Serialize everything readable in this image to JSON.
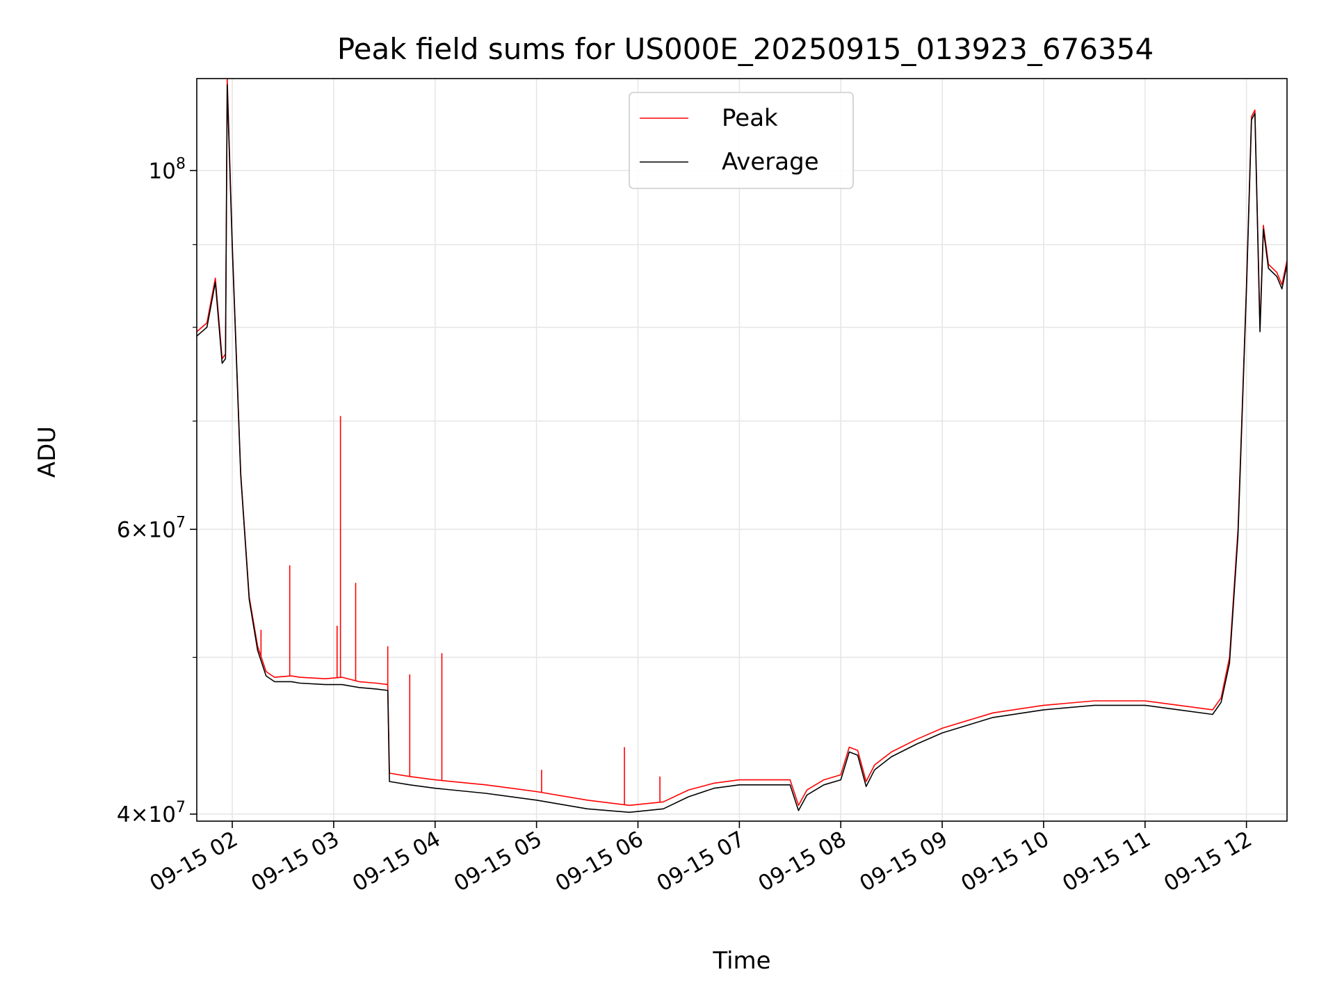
{
  "chart_data": {
    "type": "line",
    "title": "Peak field sums for US000E_20250915_013923_676354",
    "xlabel": "Time",
    "ylabel": "ADU",
    "xlim": [
      "2025-09-15 01:39",
      "2025-09-15 12:24"
    ],
    "ylim": [
      39600000,
      114000000
    ],
    "yscale": "log",
    "grid": true,
    "legend_position": "upper-center",
    "x_ticks": [
      "09-15 02",
      "09-15 03",
      "09-15 04",
      "09-15 05",
      "09-15 06",
      "09-15 07",
      "09-15 08",
      "09-15 09",
      "09-15 10",
      "09-15 11",
      "09-15 12"
    ],
    "y_ticks": [
      {
        "value": 40000000,
        "mantissa": "4",
        "exponent": "7"
      },
      {
        "value": 60000000,
        "mantissa": "6",
        "exponent": "7"
      },
      {
        "value": 100000000,
        "mantissa": "",
        "exponent": "8"
      }
    ],
    "y_minor_ticks": [
      50000000,
      70000000,
      80000000,
      90000000
    ],
    "series": [
      {
        "name": "Peak",
        "color": "#ff0000",
        "x": [
          "2025-09-15 01:39",
          "2025-09-15 01:45",
          "2025-09-15 01:50",
          "2025-09-15 01:54",
          "2025-09-15 01:56",
          "2025-09-15 01:57",
          "2025-09-15 02:00",
          "2025-09-15 02:05",
          "2025-09-15 02:10",
          "2025-09-15 02:15",
          "2025-09-15 02:20",
          "2025-09-15 02:25",
          "2025-09-15 02:35",
          "2025-09-15 02:40",
          "2025-09-15 02:55",
          "2025-09-15 03:05",
          "2025-09-15 03:15",
          "2025-09-15 03:25",
          "2025-09-15 03:32",
          "2025-09-15 03:33",
          "2025-09-15 03:45",
          "2025-09-15 04:00",
          "2025-09-15 04:30",
          "2025-09-15 05:00",
          "2025-09-15 05:30",
          "2025-09-15 05:55",
          "2025-09-15 06:15",
          "2025-09-15 06:30",
          "2025-09-15 06:45",
          "2025-09-15 07:00",
          "2025-09-15 07:30",
          "2025-09-15 07:35",
          "2025-09-15 07:40",
          "2025-09-15 07:50",
          "2025-09-15 08:00",
          "2025-09-15 08:05",
          "2025-09-15 08:10",
          "2025-09-15 08:15",
          "2025-09-15 08:20",
          "2025-09-15 08:30",
          "2025-09-15 08:45",
          "2025-09-15 09:00",
          "2025-09-15 09:30",
          "2025-09-15 10:00",
          "2025-09-15 10:30",
          "2025-09-15 11:00",
          "2025-09-15 11:20",
          "2025-09-15 11:40",
          "2025-09-15 11:45",
          "2025-09-15 11:50",
          "2025-09-15 11:55",
          "2025-09-15 12:00",
          "2025-09-15 12:03",
          "2025-09-15 12:05",
          "2025-09-15 12:08",
          "2025-09-15 12:10",
          "2025-09-15 12:13",
          "2025-09-15 12:18",
          "2025-09-15 12:21",
          "2025-09-15 12:24"
        ],
        "y": [
          79500000,
          80500000,
          85800000,
          76500000,
          77000000,
          114000000,
          90000000,
          65000000,
          54500000,
          50800000,
          49000000,
          48600000,
          48700000,
          48600000,
          48500000,
          48600000,
          48300000,
          48200000,
          48100000,
          42400000,
          42200000,
          42000000,
          41700000,
          41300000,
          40800000,
          40500000,
          40700000,
          41400000,
          41800000,
          42000000,
          42000000,
          40500000,
          41400000,
          42000000,
          42300000,
          44000000,
          43800000,
          41900000,
          42900000,
          43700000,
          44500000,
          45200000,
          46200000,
          46700000,
          47000000,
          47000000,
          46700000,
          46400000,
          47200000,
          50000000,
          60000000,
          85000000,
          108000000,
          109000000,
          80000000,
          92500000,
          87500000,
          86500000,
          85000000,
          88000000
        ]
      },
      {
        "name": "Average",
        "color": "#000000",
        "x": [
          "2025-09-15 01:39",
          "2025-09-15 01:45",
          "2025-09-15 01:50",
          "2025-09-15 01:54",
          "2025-09-15 01:56",
          "2025-09-15 01:57",
          "2025-09-15 02:00",
          "2025-09-15 02:05",
          "2025-09-15 02:10",
          "2025-09-15 02:15",
          "2025-09-15 02:20",
          "2025-09-15 02:25",
          "2025-09-15 02:35",
          "2025-09-15 02:40",
          "2025-09-15 02:55",
          "2025-09-15 03:05",
          "2025-09-15 03:15",
          "2025-09-15 03:25",
          "2025-09-15 03:32",
          "2025-09-15 03:33",
          "2025-09-15 03:45",
          "2025-09-15 04:00",
          "2025-09-15 04:30",
          "2025-09-15 05:00",
          "2025-09-15 05:30",
          "2025-09-15 05:55",
          "2025-09-15 06:15",
          "2025-09-15 06:30",
          "2025-09-15 06:45",
          "2025-09-15 07:00",
          "2025-09-15 07:30",
          "2025-09-15 07:35",
          "2025-09-15 07:40",
          "2025-09-15 07:50",
          "2025-09-15 08:00",
          "2025-09-15 08:05",
          "2025-09-15 08:10",
          "2025-09-15 08:15",
          "2025-09-15 08:20",
          "2025-09-15 08:30",
          "2025-09-15 08:45",
          "2025-09-15 09:00",
          "2025-09-15 09:30",
          "2025-09-15 10:00",
          "2025-09-15 10:30",
          "2025-09-15 11:00",
          "2025-09-15 11:20",
          "2025-09-15 11:40",
          "2025-09-15 11:45",
          "2025-09-15 11:50",
          "2025-09-15 11:55",
          "2025-09-15 12:00",
          "2025-09-15 12:03",
          "2025-09-15 12:05",
          "2025-09-15 12:08",
          "2025-09-15 12:10",
          "2025-09-15 12:13",
          "2025-09-15 12:18",
          "2025-09-15 12:21",
          "2025-09-15 12:24"
        ],
        "y": [
          79000000,
          80000000,
          85300000,
          76000000,
          76500000,
          113000000,
          89500000,
          64800000,
          54300000,
          50500000,
          48700000,
          48300000,
          48300000,
          48200000,
          48100000,
          48100000,
          47900000,
          47800000,
          47700000,
          41900000,
          41700000,
          41500000,
          41200000,
          40800000,
          40300000,
          40100000,
          40300000,
          41000000,
          41500000,
          41700000,
          41700000,
          40200000,
          41100000,
          41700000,
          42000000,
          43700000,
          43500000,
          41600000,
          42600000,
          43400000,
          44200000,
          44900000,
          45900000,
          46400000,
          46700000,
          46700000,
          46400000,
          46100000,
          46900000,
          49600000,
          59500000,
          84500000,
          107500000,
          108500000,
          79500000,
          92000000,
          87000000,
          86000000,
          84500000,
          87500000
        ]
      }
    ],
    "spikes": [
      {
        "series": "Peak",
        "x": "2025-09-15 02:17",
        "y": 52000000
      },
      {
        "series": "Peak",
        "x": "2025-09-15 02:34",
        "y": 57000000
      },
      {
        "series": "Peak",
        "x": "2025-09-15 03:02",
        "y": 52300000
      },
      {
        "series": "Peak",
        "x": "2025-09-15 03:04",
        "y": 70500000
      },
      {
        "series": "Peak",
        "x": "2025-09-15 03:13",
        "y": 55600000
      },
      {
        "series": "Peak",
        "x": "2025-09-15 03:32",
        "y": 50800000
      },
      {
        "series": "Peak",
        "x": "2025-09-15 03:45",
        "y": 48800000
      },
      {
        "series": "Peak",
        "x": "2025-09-15 04:04",
        "y": 50300000
      },
      {
        "series": "Peak",
        "x": "2025-09-15 05:52",
        "y": 44000000
      },
      {
        "series": "Peak",
        "x": "2025-09-15 05:03",
        "y": 42600000
      },
      {
        "series": "Peak",
        "x": "2025-09-15 06:13",
        "y": 42200000
      }
    ]
  }
}
